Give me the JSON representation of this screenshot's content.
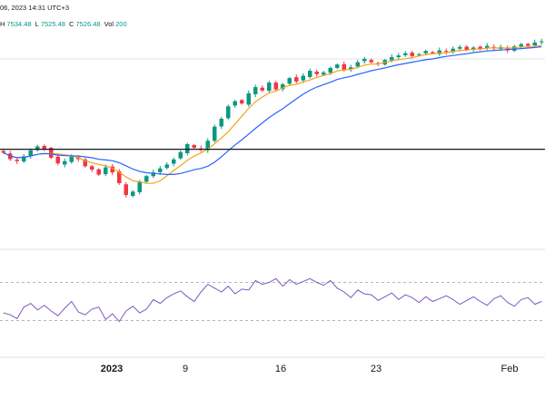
{
  "header": {
    "date_fragment": "06, 2023 14:31 UTC+3",
    "high_label": "H",
    "high_value": "7534.48",
    "low_label": "L",
    "low_value": "7525.48",
    "close_label": "C",
    "close_value": "7526.48",
    "volume_label": "Vol",
    "volume_value": "200"
  },
  "colors": {
    "up": "#089981",
    "down": "#f23645",
    "ma_fast": "#f7a21b",
    "ma_slow": "#2962ff",
    "rsi": "#7e57c2",
    "hline": "#131722",
    "grid": "#e0e3eb",
    "axis_text": "#131722"
  },
  "chart_data": [
    {
      "type": "candlestick",
      "title": "",
      "x_axis_ticks": [
        "2023",
        "9",
        "16",
        "23",
        "Feb"
      ],
      "horizontal_line": 7240,
      "series": [
        {
          "name": "",
          "type": "candlestick"
        },
        {
          "name": "",
          "type": "line",
          "color_key": "ma_fast"
        },
        {
          "name": "",
          "type": "line",
          "color_key": "ma_slow"
        }
      ],
      "ylim": [
        6950,
        7640
      ],
      "close": [
        7228,
        7205,
        7198,
        7215,
        7236,
        7250,
        7242,
        7210,
        7190,
        7198,
        7214,
        7205,
        7180,
        7168,
        7150,
        7176,
        7158,
        7120,
        7078,
        7090,
        7126,
        7145,
        7158,
        7172,
        7186,
        7204,
        7230,
        7258,
        7245,
        7238,
        7270,
        7320,
        7348,
        7392,
        7410,
        7402,
        7438,
        7460,
        7448,
        7476,
        7452,
        7470,
        7492,
        7480,
        7500,
        7518,
        7506,
        7512,
        7528,
        7540,
        7522,
        7530,
        7548,
        7560,
        7548,
        7542,
        7556,
        7566,
        7572,
        7580,
        7570,
        7576,
        7588,
        7580,
        7590,
        7585,
        7596,
        7602,
        7592,
        7600,
        7594,
        7606,
        7598,
        7602,
        7590,
        7604,
        7612,
        7606,
        7618,
        7622
      ]
    },
    {
      "type": "line",
      "title": "",
      "series_name": "",
      "ylim": [
        0,
        100
      ],
      "levels": [
        70,
        30
      ],
      "values": [
        38,
        36,
        32,
        44,
        48,
        41,
        46,
        40,
        35,
        43,
        50,
        39,
        36,
        42,
        44,
        31,
        37,
        29,
        40,
        45,
        38,
        42,
        52,
        48,
        54,
        58,
        61,
        55,
        50,
        60,
        68,
        64,
        60,
        66,
        58,
        63,
        62,
        72,
        68,
        70,
        74,
        66,
        73,
        68,
        71,
        74,
        70,
        67,
        72,
        64,
        60,
        54,
        62,
        58,
        57,
        51,
        55,
        59,
        52,
        57,
        54,
        49,
        55,
        50,
        53,
        56,
        52,
        47,
        51,
        55,
        50,
        46,
        53,
        56,
        49,
        45,
        52,
        54,
        47,
        50
      ]
    }
  ]
}
